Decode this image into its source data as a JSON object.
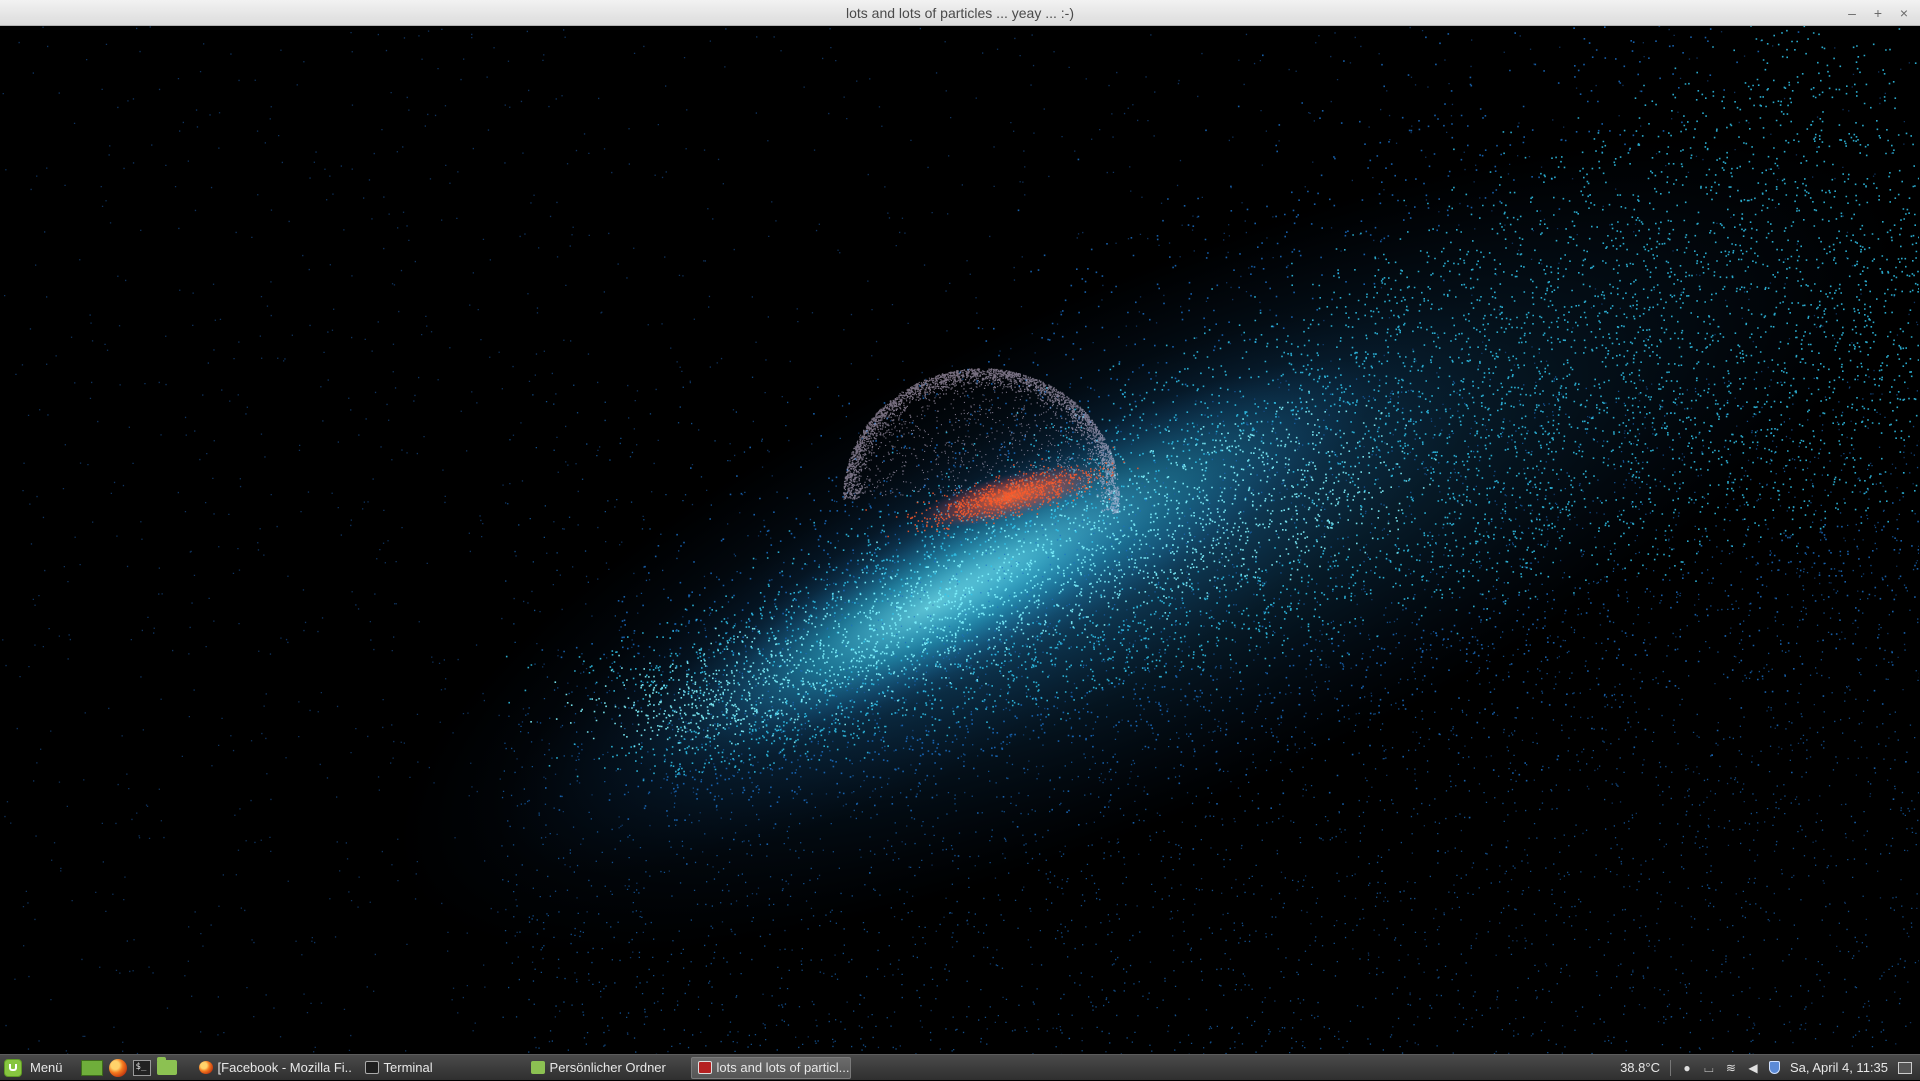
{
  "window": {
    "title": "lots and lots of particles ... yeay ... :-)",
    "controls": {
      "minimize_icon": "minimize-icon",
      "maximize_icon": "maximize-icon",
      "close_icon": "close-icon"
    }
  },
  "canvas": {
    "background": "#000000",
    "particle_colors": {
      "stream_core": "#7ff4ff",
      "stream_mid": "#31c8f0",
      "stream_edge": "#1a6fc4",
      "sphere_shell": "#d9c9e6",
      "sphere_hot": "#ff5a2a"
    }
  },
  "taskbar": {
    "menu_label": "Menü",
    "launchers": [
      "desktop-icon",
      "firefox-icon",
      "terminal-icon",
      "folder-icon"
    ],
    "tasks": [
      {
        "label": "[Facebook - Mozilla Fi...",
        "icon": "firefox-icon",
        "active": false
      },
      {
        "label": "Terminal",
        "icon": "terminal-icon",
        "active": false
      },
      {
        "label": "Persönlicher Ordner",
        "icon": "folder-icon",
        "active": false
      },
      {
        "label": "lots and lots of particl...",
        "icon": "app-icon",
        "active": true
      }
    ],
    "tray": {
      "temperature": "38.8°C",
      "icons": [
        "user-icon",
        "keyboard-icon",
        "wifi-icon",
        "volume-icon",
        "shield-icon"
      ],
      "clock": "Sa, April  4, 11:35",
      "show_desktop_icon": "show-desktop-icon"
    }
  }
}
